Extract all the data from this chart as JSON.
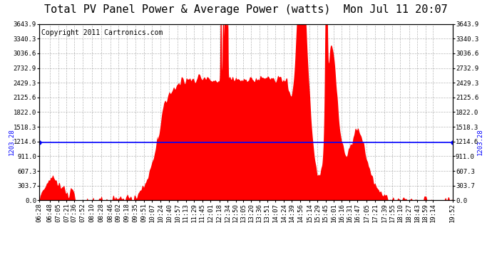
{
  "title": "Total PV Panel Power & Average Power (watts)  Mon Jul 11 20:07",
  "copyright": "Copyright 2011 Cartronics.com",
  "avg_power": 1203.28,
  "avg_label": "1203.28",
  "avg_line_color": "#0000ff",
  "fill_color": "#ff0000",
  "background_color": "#ffffff",
  "plot_bg_color": "#ffffff",
  "grid_color": "#999999",
  "yticks": [
    0.0,
    303.7,
    607.3,
    911.0,
    1214.6,
    1518.3,
    1822.0,
    2125.6,
    2429.3,
    2732.9,
    3036.6,
    3340.3,
    3643.9
  ],
  "ymax": 3643.9,
  "ymin": 0.0,
  "x_labels": [
    "06:28",
    "06:48",
    "07:05",
    "07:21",
    "07:36",
    "07:52",
    "08:10",
    "08:28",
    "08:46",
    "09:02",
    "09:18",
    "09:35",
    "09:51",
    "10:07",
    "10:24",
    "10:40",
    "10:57",
    "11:13",
    "11:29",
    "11:45",
    "12:01",
    "12:18",
    "12:34",
    "12:50",
    "13:05",
    "13:20",
    "13:36",
    "13:51",
    "14:07",
    "14:24",
    "14:39",
    "14:56",
    "15:14",
    "15:29",
    "15:45",
    "16:01",
    "16:16",
    "16:31",
    "16:47",
    "17:05",
    "17:21",
    "17:39",
    "17:55",
    "18:10",
    "18:27",
    "18:43",
    "18:59",
    "19:14",
    "19:52"
  ],
  "title_fontsize": 11,
  "copyright_fontsize": 7,
  "tick_fontsize": 6.5,
  "avg_fontsize": 6.5
}
